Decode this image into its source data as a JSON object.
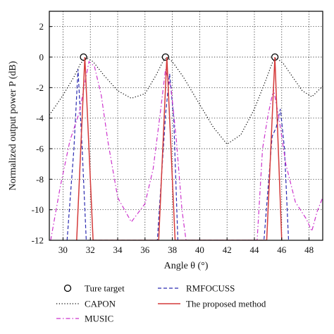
{
  "chart_data": {
    "type": "line",
    "xlabel": "Angle θ (°)",
    "ylabel": "Normalized output power P (dB)",
    "xlim": [
      29,
      49
    ],
    "ylim": [
      -12,
      3
    ],
    "xticks": [
      30,
      32,
      34,
      36,
      38,
      40,
      42,
      44,
      46,
      48
    ],
    "yticks": [
      2,
      0,
      -2,
      -4,
      -6,
      -8,
      -10,
      -12
    ],
    "grid": true,
    "legend_placement": "below-plot",
    "series": [
      {
        "name": "Ture target",
        "style": "marker",
        "color": "#000000",
        "points": [
          [
            31.5,
            0
          ],
          [
            37.5,
            0
          ],
          [
            45.5,
            0
          ]
        ]
      },
      {
        "name": "CAPON",
        "style": "dotted",
        "color": "#000000",
        "points": [
          [
            29,
            -3.8
          ],
          [
            30,
            -2.5
          ],
          [
            30.8,
            -1.3
          ],
          [
            31.3,
            -0.4
          ],
          [
            31.7,
            -0.05
          ],
          [
            32.2,
            -0.3
          ],
          [
            33,
            -1.2
          ],
          [
            34,
            -2.2
          ],
          [
            35,
            -2.7
          ],
          [
            36,
            -2.4
          ],
          [
            36.8,
            -1.2
          ],
          [
            37.3,
            -0.3
          ],
          [
            37.6,
            0
          ],
          [
            38,
            -0.3
          ],
          [
            38.8,
            -1.3
          ],
          [
            40,
            -3.1
          ],
          [
            41,
            -4.6
          ],
          [
            42,
            -5.7
          ],
          [
            43,
            -5.1
          ],
          [
            44,
            -3.4
          ],
          [
            44.8,
            -1.6
          ],
          [
            45.3,
            -0.4
          ],
          [
            45.6,
            -0.05
          ],
          [
            46.1,
            -0.4
          ],
          [
            46.8,
            -1.3
          ],
          [
            47.5,
            -2.2
          ],
          [
            48.2,
            -2.6
          ],
          [
            49,
            -1.9
          ]
        ]
      },
      {
        "name": "RMFOCUSS",
        "style": "dashed",
        "color": "#2b2bb0",
        "points": [
          [
            30.3,
            -12
          ],
          [
            30.8,
            -6
          ],
          [
            31.1,
            -0.8
          ],
          [
            31.4,
            -6
          ],
          [
            31.7,
            -12
          ],
          [
            36.9,
            -12
          ],
          [
            37.5,
            -3.8
          ],
          [
            37.8,
            -1.1
          ],
          [
            38.1,
            -4
          ],
          [
            38.4,
            -12
          ],
          [
            44.7,
            -12
          ],
          [
            45.3,
            -5.2
          ],
          [
            45.6,
            -4.6
          ],
          [
            45.9,
            -3.4
          ],
          [
            46.2,
            -6
          ],
          [
            46.5,
            -12
          ]
        ]
      },
      {
        "name": "MUSIC",
        "style": "dashdot",
        "color": "#cc33cc",
        "points": [
          [
            29.1,
            -12
          ],
          [
            29.8,
            -8.5
          ],
          [
            30.5,
            -5.5
          ],
          [
            31.2,
            -3.6
          ],
          [
            31.7,
            -1.2
          ],
          [
            31.9,
            -0.3
          ],
          [
            32.3,
            -0.6
          ],
          [
            32.8,
            -2.5
          ],
          [
            33.3,
            -5.6
          ],
          [
            34,
            -9.2
          ],
          [
            35,
            -10.8
          ],
          [
            36,
            -9.6
          ],
          [
            36.6,
            -7.3
          ],
          [
            37.1,
            -3.8
          ],
          [
            37.5,
            -0.8
          ],
          [
            37.9,
            -2
          ],
          [
            38.3,
            -5.5
          ],
          [
            38.7,
            -10
          ],
          [
            39,
            -12
          ],
          [
            44.2,
            -12
          ],
          [
            44.6,
            -6
          ],
          [
            45,
            -3.8
          ],
          [
            45.4,
            -2.1
          ],
          [
            45.8,
            -4
          ],
          [
            46.3,
            -7
          ],
          [
            47,
            -9.5
          ],
          [
            47.8,
            -10.6
          ],
          [
            48.2,
            -11.4
          ],
          [
            48.6,
            -10.1
          ],
          [
            49,
            -9.2
          ]
        ]
      },
      {
        "name": "The proposed method",
        "style": "solid",
        "color": "#d43a3a",
        "points": [
          [
            31.0,
            -12
          ],
          [
            31.6,
            0
          ],
          [
            32.2,
            -12
          ],
          [
            37.0,
            -12
          ],
          [
            37.6,
            0
          ],
          [
            38.2,
            -12
          ],
          [
            44.9,
            -12
          ],
          [
            45.5,
            0
          ],
          [
            46.0,
            -12
          ]
        ]
      }
    ]
  }
}
